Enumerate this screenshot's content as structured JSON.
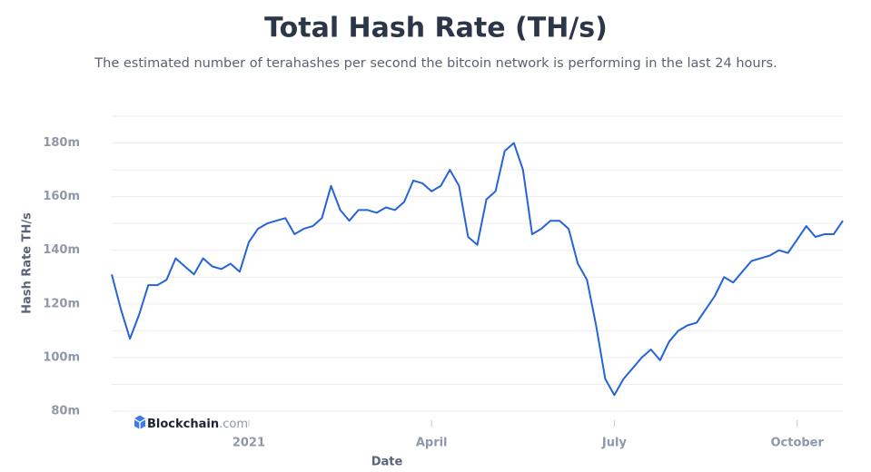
{
  "chart_data": {
    "type": "line",
    "title": "Total Hash Rate (TH/s)",
    "subtitle": "The estimated number of terahashes per second the bitcoin network is performing in the last 24 hours.",
    "x_label": "Date",
    "y_label": "Hash Rate TH/s",
    "watermark": {
      "brand": "Blockchain",
      "suffix": ".com"
    },
    "categories": [
      null,
      null,
      null,
      null,
      null,
      null,
      null,
      null,
      null,
      null,
      null,
      null,
      null,
      null,
      null,
      "2021",
      null,
      null,
      null,
      null,
      null,
      null,
      null,
      null,
      null,
      null,
      null,
      null,
      null,
      null,
      null,
      null,
      null,
      null,
      null,
      "April",
      null,
      null,
      null,
      null,
      null,
      null,
      null,
      null,
      null,
      null,
      null,
      null,
      null,
      null,
      null,
      null,
      null,
      null,
      null,
      "July",
      null,
      null,
      null,
      null,
      null,
      null,
      null,
      null,
      null,
      null,
      null,
      null,
      null,
      null,
      null,
      null,
      null,
      null,
      null,
      "October",
      null,
      null,
      null,
      null,
      null
    ],
    "series": [
      {
        "name": "Hash Rate TH/s",
        "color": "#2563d9",
        "values": [
          131,
          118,
          107,
          116,
          127,
          127,
          129,
          137,
          134,
          131,
          137,
          134,
          133,
          135,
          132,
          143,
          148,
          150,
          151,
          152,
          146,
          148,
          149,
          152,
          164,
          155,
          151,
          155,
          155,
          154,
          156,
          155,
          158,
          166,
          165,
          162,
          164,
          170,
          164,
          145,
          142,
          159,
          162,
          177,
          180,
          170,
          146,
          148,
          151,
          151,
          148,
          135,
          129,
          112,
          92,
          86,
          92,
          96,
          100,
          103,
          99,
          106,
          110,
          112,
          113,
          118,
          123,
          130,
          128,
          132,
          136,
          137,
          138,
          140,
          139,
          144,
          149,
          145,
          146,
          146,
          151
        ]
      }
    ],
    "ylim": [
      80,
      190
    ],
    "yticks": [
      {
        "value": 80,
        "label": "80m"
      },
      {
        "value": 100,
        "label": "100m"
      },
      {
        "value": 120,
        "label": "120m"
      },
      {
        "value": 140,
        "label": "140m"
      },
      {
        "value": 160,
        "label": "160m"
      },
      {
        "value": 180,
        "label": "180m"
      }
    ],
    "ygrid": [
      80,
      90,
      100,
      110,
      120,
      130,
      140,
      150,
      160,
      170,
      180,
      190
    ],
    "grid": true
  }
}
